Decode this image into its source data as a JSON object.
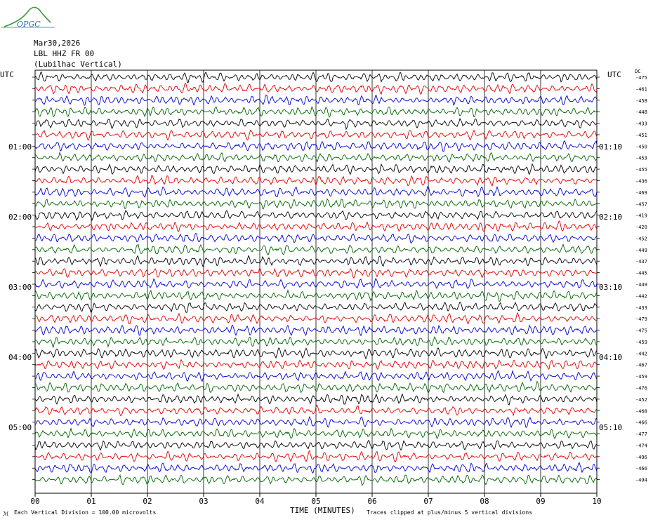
{
  "header": {
    "logo_text": "OPGC",
    "date": "Mar30,2026",
    "station": "LBL HHZ FR 00",
    "location": "(Lubilhac Vertical)"
  },
  "axes": {
    "left_utc": "UTC",
    "right_utc": "UTC",
    "left_hour_labels": [
      "01:00",
      "02:00",
      "03:00",
      "04:00",
      "05:00"
    ],
    "right_hour_labels": [
      "01:10",
      "02:10",
      "03:10",
      "04:10",
      "05:10"
    ],
    "right_top_label": "DC",
    "x_ticks": [
      "00",
      "01",
      "02",
      "03",
      "04",
      "05",
      "06",
      "07",
      "08",
      "09",
      "10"
    ],
    "x_label": "TIME (MINUTES)"
  },
  "footer": {
    "left_mark": "ℳ",
    "scale_note": "Each Vertical Division =  100.00 microvolts",
    "clip_note": "Traces clipped at plus/minus 5 vertical divisions"
  },
  "colors": {
    "trace_cycle": [
      "#000000",
      "#e00000",
      "#0000d0",
      "#006400"
    ],
    "grid": "#000000"
  },
  "chart_data": {
    "type": "line",
    "title": "",
    "xlabel": "TIME (MINUTES)",
    "ylabel": "UTC",
    "xlim": [
      0,
      10
    ],
    "grid": true,
    "trace_count": 36,
    "minutes_per_trace": 10,
    "dc_offsets": [
      -475,
      -461,
      -458,
      -448,
      -433,
      -451,
      -450,
      -453,
      -455,
      -436,
      -469,
      -457,
      -419,
      -420,
      -452,
      -449,
      -437,
      -445,
      -449,
      -442,
      -433,
      -479,
      -475,
      -459,
      -442,
      -467,
      -459,
      -476,
      -452,
      -468,
      -466,
      -477,
      -474,
      -496,
      -466,
      -494
    ]
  }
}
